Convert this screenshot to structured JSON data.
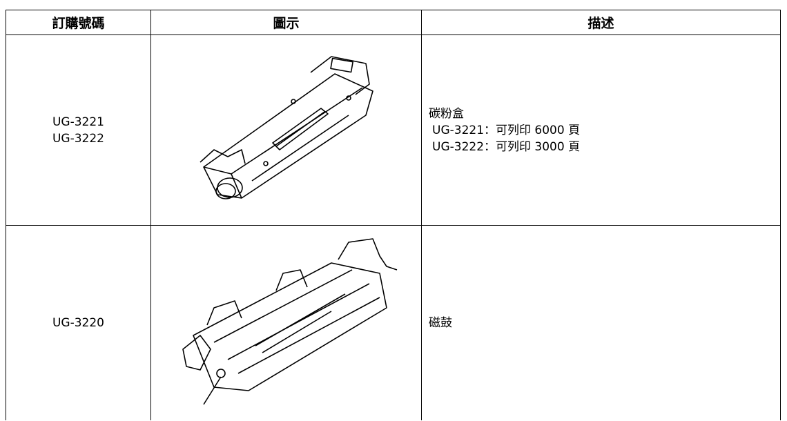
{
  "table": {
    "header": [
      "訂購號碼",
      "圖示",
      "描述"
    ],
    "rows": [
      {
        "order_numbers": [
          "UG-3221",
          "UG-3222"
        ],
        "description": [
          "碳粉盒",
          "UG-3221：可列印 6000 頁",
          "UG-3222：可列印 3000 頁"
        ]
      },
      {
        "order_numbers": [
          "UG-3220"
        ],
        "description": [
          "磁鼓"
        ]
      }
    ]
  }
}
